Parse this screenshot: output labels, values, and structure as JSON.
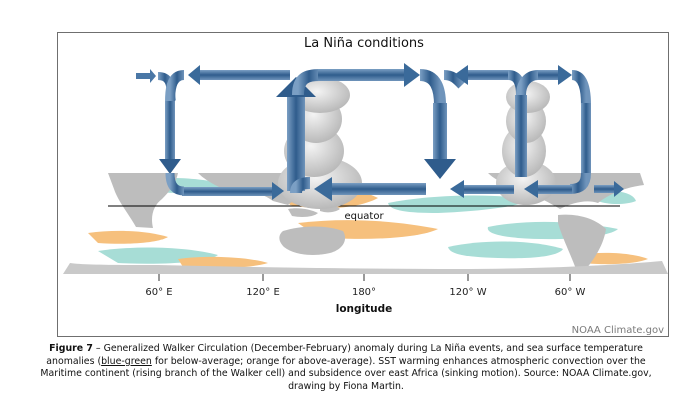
{
  "figure": {
    "title": "La Niña conditions",
    "equator_label": "equator",
    "x_ticks": [
      "60° E",
      "120° E",
      "180°",
      "120° W",
      "60° W"
    ],
    "x_axis_label": "longitude",
    "credit": "NOAA Climate.gov",
    "colors": {
      "land": "#bdbdbd",
      "cool_sst": "#a7ddd6",
      "warm_sst": "#f6c07d",
      "arrow": "#3f6b97",
      "cloud": "#e2e2e2"
    }
  },
  "caption": {
    "label": "Figure 7",
    "part1": " – Generalized Walker Circulation (December-February) anomaly during La Niña events, and sea surface temperature anomalies (",
    "blue_green": "blue-green",
    "part2": " for below-average; orange for above-average). SST warming enhances atmospheric convection over the Maritime continent (rising branch of the Walker cell) and subsidence over east Africa (sinking motion). Source: NOAA Climate.gov, drawing by Fiona Martin."
  }
}
